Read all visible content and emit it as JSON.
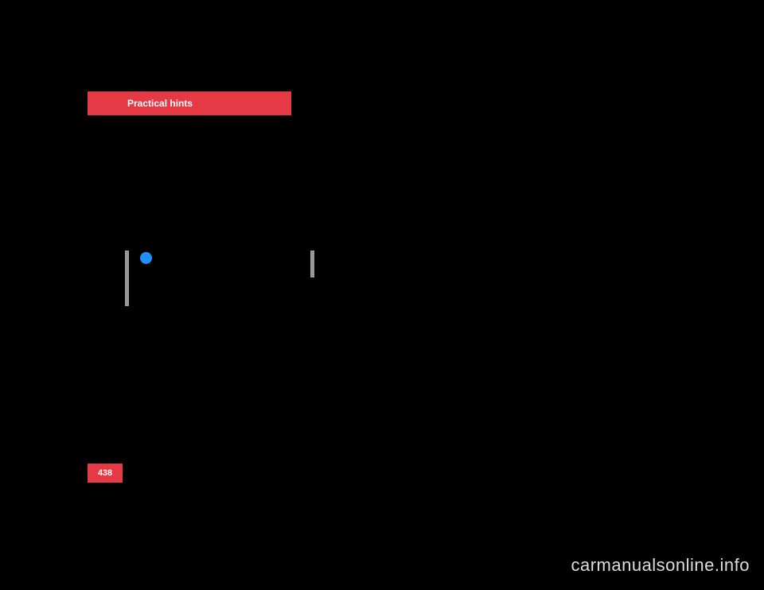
{
  "header": {
    "tab_label": "Practical hints",
    "tab_bg_color": "#e63946",
    "tab_text_color": "#ffffff"
  },
  "page": {
    "number": "438",
    "bg_color": "#000000",
    "number_bg_color": "#e63946",
    "number_text_color": "#ffffff"
  },
  "info_box": {
    "icon_color": "#1e90ff",
    "bar_color": "#9a9a9a"
  },
  "watermark": {
    "text": "carmanualsonline.info",
    "color": "#dddddd"
  }
}
